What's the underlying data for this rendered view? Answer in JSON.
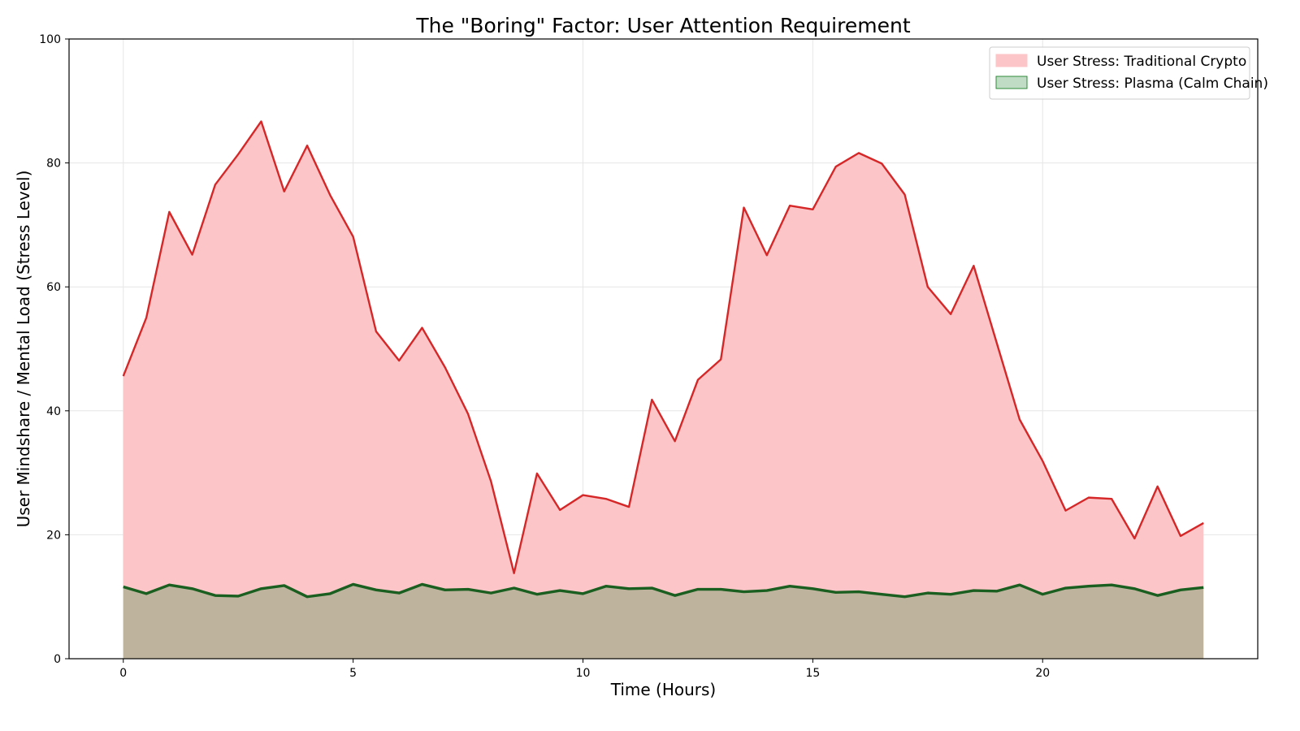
{
  "chart_data": {
    "type": "area",
    "title": "The \"Boring\" Factor: User Attention Requirement",
    "xlabel": "Time (Hours)",
    "ylabel": "User Mindshare / Mental Load (Stress Level)",
    "xlim": [
      -1.18,
      24.68
    ],
    "ylim": [
      0,
      100
    ],
    "xticks": [
      0,
      5,
      10,
      15,
      20
    ],
    "yticks": [
      0,
      20,
      40,
      60,
      80,
      100
    ],
    "grid": true,
    "legend_position": "top-right",
    "x": [
      0,
      0.5,
      1,
      1.5,
      2,
      2.5,
      3,
      3.5,
      4,
      4.5,
      5,
      5.5,
      6,
      6.5,
      7,
      7.5,
      8,
      8.5,
      9,
      9.5,
      10,
      10.5,
      11,
      11.5,
      12,
      12.5,
      13,
      13.5,
      14,
      14.5,
      15,
      15.5,
      16,
      16.5,
      17,
      17.5,
      18,
      18.5,
      19,
      19.5,
      20,
      20.5,
      21,
      21.5,
      22,
      22.5,
      23,
      23.5
    ],
    "series": [
      {
        "name": "User Stress: Traditional Crypto",
        "line_color": "#d62728",
        "fill_color": "#fcc5c7",
        "values": [
          45.6,
          55.0,
          72.1,
          65.2,
          76.5,
          81.4,
          86.7,
          75.4,
          82.8,
          74.8,
          68.1,
          52.8,
          48.1,
          53.4,
          47.0,
          39.5,
          28.6,
          13.8,
          29.9,
          24.0,
          26.4,
          25.8,
          24.5,
          41.8,
          35.1,
          45.0,
          48.3,
          72.8,
          65.1,
          73.1,
          72.5,
          79.4,
          81.6,
          79.9,
          74.9,
          60.0,
          55.6,
          63.4,
          51.0,
          38.6,
          31.9,
          23.9,
          26.0,
          25.8,
          19.4,
          27.8,
          19.8,
          21.9
        ]
      },
      {
        "name": "User Stress: Plasma (Calm Chain)",
        "line_color": "#1a5e20",
        "fill_color": "#2e8b3a",
        "values": [
          11.6,
          10.5,
          11.9,
          11.3,
          10.2,
          10.1,
          11.3,
          11.8,
          10.0,
          10.5,
          12.0,
          11.1,
          10.6,
          12.0,
          11.1,
          11.2,
          10.6,
          11.4,
          10.4,
          11.0,
          10.5,
          11.7,
          11.3,
          11.4,
          10.2,
          11.2,
          11.2,
          10.8,
          11.0,
          11.7,
          11.3,
          10.7,
          10.8,
          10.4,
          10.0,
          10.6,
          10.4,
          11.0,
          10.9,
          11.9,
          10.4,
          11.4,
          11.7,
          11.9,
          11.3,
          10.2,
          11.1,
          11.5
        ]
      }
    ]
  }
}
